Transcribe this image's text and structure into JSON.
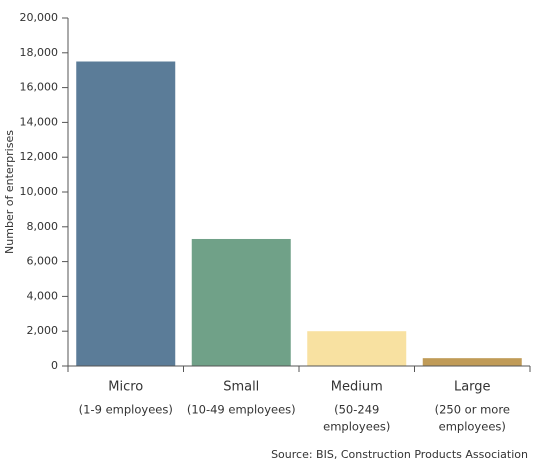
{
  "chart_data": {
    "type": "bar",
    "y_label": "Number of enterprises",
    "categories": [
      "Micro",
      "Small",
      "Medium",
      "Large"
    ],
    "category_notes": [
      [
        "(1-9 employees)"
      ],
      [
        "(10-49 employees)"
      ],
      [
        "(50-249",
        "employees)"
      ],
      [
        "(250 or more",
        "employees)"
      ]
    ],
    "values": [
      17500,
      7300,
      2000,
      450
    ],
    "colors": [
      "#5b7c98",
      "#70a188",
      "#f8e1a1",
      "#c09b57"
    ],
    "ylim": [
      0,
      20000
    ],
    "yticks": [
      0,
      {
        "value": 2000,
        "label": "2,000"
      },
      {
        "value": 4000,
        "label": "4,000"
      },
      {
        "value": 6000,
        "label": "6,000"
      },
      {
        "value": 8000,
        "label": "8,000"
      },
      {
        "value": 10000,
        "label": "10,000"
      },
      {
        "value": 12000,
        "label": "12,000"
      },
      {
        "value": 14000,
        "label": "14,000"
      },
      {
        "value": 16000,
        "label": "16,000"
      },
      {
        "value": 18000,
        "label": "18,000"
      },
      {
        "value": 20000,
        "label": "20,000"
      }
    ],
    "source": "Source: BIS, Construction Products Association"
  }
}
